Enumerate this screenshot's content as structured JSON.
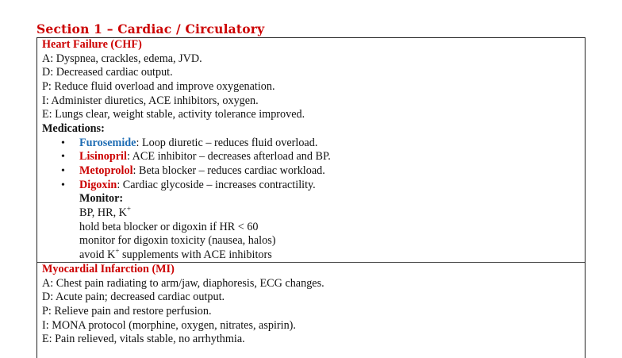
{
  "section_title": "Section 1 – Cardiac / Circulatory",
  "colors": {
    "heading": "#cc0000",
    "furosemide": "#1f6db4",
    "drug_red": "#cc0000"
  },
  "chf": {
    "heading": "Heart Failure (CHF)",
    "lines": [
      "A: Dyspnea, crackles, edema, JVD.",
      "D: Decreased cardiac output.",
      "P: Reduce fluid overload and improve oxygenation.",
      "I: Administer diuretics, ACE inhibitors, oxygen.",
      "E: Lungs clear, weight stable, activity tolerance improved."
    ],
    "medications_label": "Medications:",
    "medications": [
      {
        "name": "Furosemide",
        "desc": ": Loop diuretic – reduces fluid overload."
      },
      {
        "name": "Lisinopril",
        "desc": ": ACE inhibitor – decreases afterload and BP."
      },
      {
        "name": "Metoprolol",
        "desc": ": Beta blocker – reduces cardiac workload."
      },
      {
        "name": "Digoxin",
        "desc": ": Cardiac glycoside – increases contractility."
      }
    ],
    "monitor_label": "Monitor:",
    "monitor": {
      "line1_prefix": "BP, HR, K",
      "plus": "+",
      "line2": "hold beta blocker or digoxin if HR < 60",
      "line3": "monitor for digoxin toxicity (nausea, halos)",
      "line4_prefix": "avoid K",
      "line4_suffix": " supplements with ACE inhibitors"
    }
  },
  "mi": {
    "heading": "Myocardial Infarction (MI)",
    "lines": [
      "A: Chest pain radiating to arm/jaw, diaphoresis, ECG changes.",
      "D: Acute pain; decreased cardiac output.",
      "P: Relieve pain and restore perfusion.",
      "I: MONA protocol (morphine, oxygen, nitrates, aspirin).",
      "E: Pain relieved, vitals stable, no arrhythmia."
    ]
  }
}
